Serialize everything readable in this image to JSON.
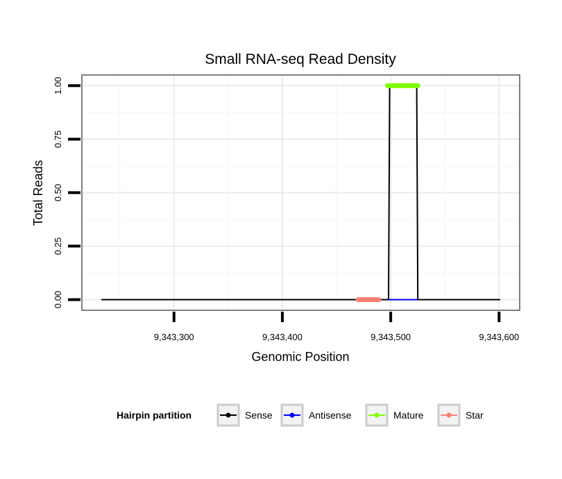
{
  "chart_data": {
    "type": "line",
    "title": "Small RNA-seq Read Density",
    "xlabel": "Genomic Position",
    "ylabel": "Total Reads",
    "xlim": [
      9343215,
      9343619
    ],
    "ylim": [
      -0.05,
      1.05
    ],
    "xticks": [
      9343300,
      9343400,
      9343500,
      9343600
    ],
    "xtick_labels": [
      "9,343,300",
      "9,343,400",
      "9,343,500",
      "9,343,600"
    ],
    "yticks": [
      0,
      0.25,
      0.5,
      0.75,
      1
    ],
    "ytick_labels": [
      "0.00",
      "0.25",
      "0.50",
      "0.75",
      "1.00"
    ],
    "grid": true,
    "legend": {
      "title": "Hairpin partition",
      "position": "bottom",
      "entries": [
        "Sense",
        "Antisense",
        "Mature",
        "Star"
      ]
    },
    "series": [
      {
        "name": "Sense",
        "color": "#000000",
        "points": [
          [
            9343233,
            0
          ],
          [
            9343498,
            0
          ],
          [
            9343499,
            1
          ],
          [
            9343524,
            1
          ],
          [
            9343525,
            0
          ],
          [
            9343601,
            0
          ]
        ]
      },
      {
        "name": "Antisense",
        "color": "#0000ff",
        "points": [
          [
            9343498,
            0
          ],
          [
            9343525,
            0
          ]
        ]
      },
      {
        "name": "Mature",
        "color": "#7fff00",
        "points": [
          [
            9343497,
            1
          ],
          [
            9343525,
            1
          ]
        ]
      },
      {
        "name": "Star",
        "color": "#fa8072",
        "points": [
          [
            9343470,
            0
          ],
          [
            9343489,
            0
          ]
        ]
      }
    ]
  }
}
